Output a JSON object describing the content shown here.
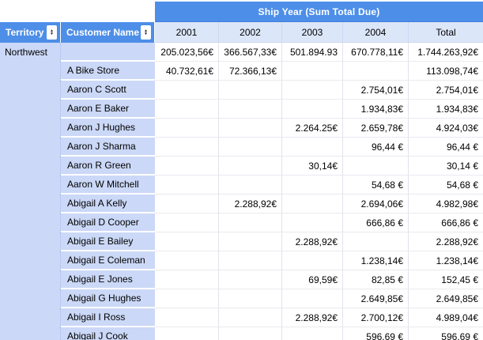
{
  "header": {
    "group_title": "Ship Year (Sum Total Due)"
  },
  "columns": {
    "territory": "Territory",
    "customer": "Customer Name",
    "years": [
      "2001",
      "2002",
      "2003",
      "2004",
      "Total"
    ]
  },
  "icons": {
    "sort_asc": "▲",
    "sort_desc": "▼"
  },
  "colors": {
    "header_blue": "#4d8ee8",
    "year_header_bg": "#dce6f9",
    "row_header_bg": "#cbd8f7",
    "grid_line": "#e2e2ea",
    "header_text": "#ffffff",
    "cell_text": "#000000"
  },
  "rows": [
    {
      "territory": "Northwest",
      "customer": "",
      "values": [
        "205.023,56€",
        "366.567,33€",
        "501.894.93",
        "670.778,11€",
        "1.744.263,92€"
      ]
    },
    {
      "territory": "",
      "customer": "A Bike Store",
      "values": [
        "40.732,61€",
        "72.366,13€",
        "",
        "",
        "113.098,74€"
      ]
    },
    {
      "territory": "",
      "customer": "Aaron C Scott",
      "values": [
        "",
        "",
        "",
        "2.754,01€",
        "2.754,01€"
      ]
    },
    {
      "territory": "",
      "customer": "Aaron E Baker",
      "values": [
        "",
        "",
        "",
        "1.934,83€",
        "1.934,83€"
      ]
    },
    {
      "territory": "",
      "customer": "Aaron J Hughes",
      "values": [
        "",
        "",
        "2.264.25€",
        "2.659,78€",
        "4.924,03€"
      ]
    },
    {
      "territory": "",
      "customer": "Aaron J Sharma",
      "values": [
        "",
        "",
        "",
        "96,44 €",
        "96,44 €"
      ]
    },
    {
      "territory": "",
      "customer": "Aaron R Green",
      "values": [
        "",
        "",
        "30,14€",
        "",
        "30,14 €"
      ]
    },
    {
      "territory": "",
      "customer": "Aaron W Mitchell",
      "values": [
        "",
        "",
        "",
        "54,68 €",
        "54,68 €"
      ]
    },
    {
      "territory": "",
      "customer": "Abigail A Kelly",
      "values": [
        "",
        "2.288,92€",
        "",
        "2.694,06€",
        "4.982,98€"
      ]
    },
    {
      "territory": "",
      "customer": "Abigail D Cooper",
      "values": [
        "",
        "",
        "",
        "666,86 €",
        "666,86 €"
      ]
    },
    {
      "territory": "",
      "customer": "Abigail E Bailey",
      "values": [
        "",
        "",
        "2.288,92€",
        "",
        "2.288,92€"
      ]
    },
    {
      "territory": "",
      "customer": "Abigail E Coleman",
      "values": [
        "",
        "",
        "",
        "1.238,14€",
        "1.238,14€"
      ]
    },
    {
      "territory": "",
      "customer": "Abigail E Jones",
      "values": [
        "",
        "",
        "69,59€",
        "82,85 €",
        "152,45 €"
      ]
    },
    {
      "territory": "",
      "customer": "Abigail G Hughes",
      "values": [
        "",
        "",
        "",
        "2.649,85€",
        "2.649,85€"
      ]
    },
    {
      "territory": "",
      "customer": "Abigail I Ross",
      "values": [
        "",
        "",
        "2.288,92€",
        "2.700,12€",
        "4.989,04€"
      ]
    },
    {
      "territory": "",
      "customer": "Abigail J Cook",
      "values": [
        "",
        "",
        "",
        "596.69 €",
        "596.69 €"
      ]
    }
  ]
}
